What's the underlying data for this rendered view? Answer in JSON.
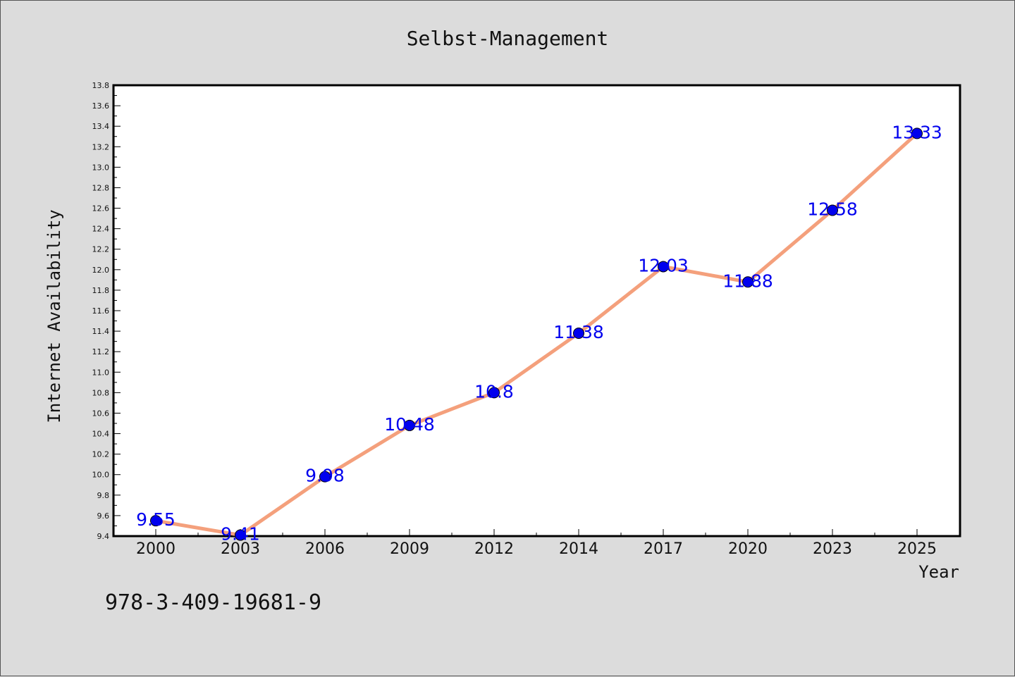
{
  "chart_data": {
    "type": "line",
    "title": "Selbst-Management",
    "xlabel": "Year",
    "ylabel": "Internet Availability",
    "categories": [
      "2000",
      "2003",
      "2006",
      "2009",
      "2012",
      "2014",
      "2017",
      "2020",
      "2023",
      "2025"
    ],
    "values": [
      9.55,
      9.41,
      9.98,
      10.48,
      10.8,
      11.38,
      12.03,
      11.88,
      12.58,
      13.33
    ],
    "data_labels": [
      "9.55",
      "9.41",
      "9.98",
      "10.48",
      "10.8",
      "11.38",
      "12.03",
      "11.88",
      "12.58",
      "13.33"
    ],
    "ylim": [
      9.4,
      13.8
    ],
    "yticks": [
      "9.4",
      "9.6",
      "9.8",
      "10.0",
      "10.2",
      "10.4",
      "10.6",
      "10.8",
      "11.0",
      "11.2",
      "11.4",
      "11.6",
      "11.8",
      "12.0",
      "12.2",
      "12.4",
      "12.6",
      "12.8",
      "13.0",
      "13.2",
      "13.4",
      "13.6",
      "13.8"
    ],
    "grid": false,
    "line_color": "#f4a07c",
    "marker_color": "#0000ee"
  },
  "footer": {
    "isbn": "978-3-409-19681-9"
  }
}
